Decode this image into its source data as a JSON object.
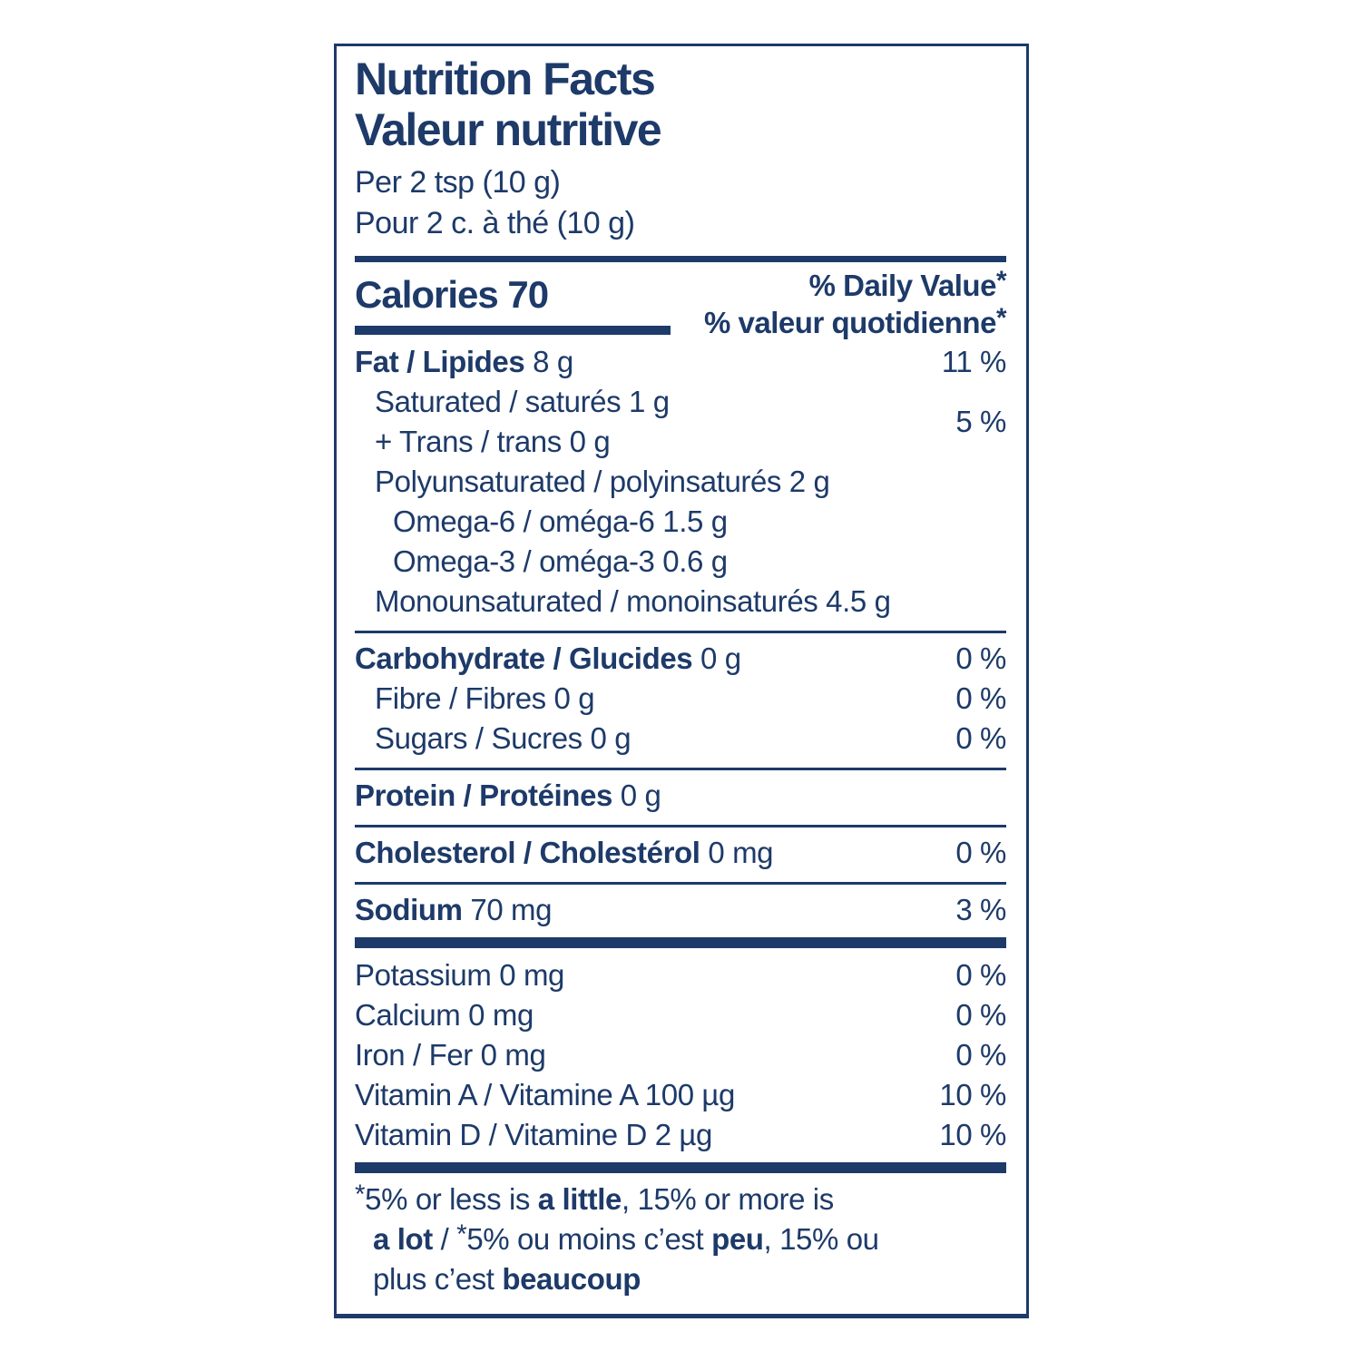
{
  "colors": {
    "ink": "#1d3a69",
    "background": "#ffffff"
  },
  "header": {
    "title_en": "Nutrition Facts",
    "title_fr": "Valeur nutritive",
    "serving_en": "Per 2 tsp (10 g)",
    "serving_fr": "Pour 2 c. à thé (10 g)"
  },
  "calories": {
    "label": "Calories",
    "value": "70"
  },
  "dv_header": {
    "en": "% Daily Value",
    "fr": "% valeur quotidienne",
    "asterisk": "*"
  },
  "nutrients": {
    "fat": {
      "bold": "Fat / Lipides",
      "rest": " 8 g",
      "dv": "11 %"
    },
    "sat_trans": {
      "line1": "Saturated / saturés 1 g",
      "line2": "+ Trans / trans 0 g",
      "dv": "5 %"
    },
    "poly": {
      "text": "Polyunsaturated / polyinsaturés 2 g"
    },
    "omega6": {
      "text": "Omega-6 / oméga-6 1.5 g"
    },
    "omega3": {
      "text": "Omega-3 / oméga-3 0.6 g"
    },
    "mono": {
      "text": "Monounsaturated / monoinsaturés 4.5 g"
    },
    "carb": {
      "bold": "Carbohydrate / Glucides",
      "rest": " 0 g",
      "dv": "0 %"
    },
    "fibre": {
      "text": "Fibre / Fibres 0 g",
      "dv": "0 %"
    },
    "sugars": {
      "text": "Sugars / Sucres 0 g",
      "dv": "0 %"
    },
    "protein": {
      "bold": "Protein / Protéines",
      "rest": " 0 g"
    },
    "cholesterol": {
      "bold": "Cholesterol / Cholestérol",
      "rest": " 0 mg",
      "dv": "0 %"
    },
    "sodium": {
      "bold": "Sodium",
      "rest": " 70 mg",
      "dv": "3 %"
    },
    "potassium": {
      "text": "Potassium 0 mg",
      "dv": "0 %"
    },
    "calcium": {
      "text": "Calcium 0 mg",
      "dv": "0 %"
    },
    "iron": {
      "text": "Iron / Fer 0 mg",
      "dv": "0 %"
    },
    "vitamin_a": {
      "text": "Vitamin A / Vitamine A 100 µg",
      "dv": "10 %"
    },
    "vitamin_d": {
      "text": "Vitamin D / Vitamine D 2 µg",
      "dv": "10 %"
    }
  },
  "footnote": {
    "star": "*",
    "en_pre": "5% or less is ",
    "en_bold1": "a little",
    "en_mid": ", 15% or more is",
    "en_bold2": "a lot",
    "sep": " / ",
    "fr_pre": "5% ou moins c’est ",
    "fr_bold1": "peu",
    "fr_mid": ", 15% ou",
    "fr_end": "plus c’est ",
    "fr_bold2": "beaucoup"
  }
}
